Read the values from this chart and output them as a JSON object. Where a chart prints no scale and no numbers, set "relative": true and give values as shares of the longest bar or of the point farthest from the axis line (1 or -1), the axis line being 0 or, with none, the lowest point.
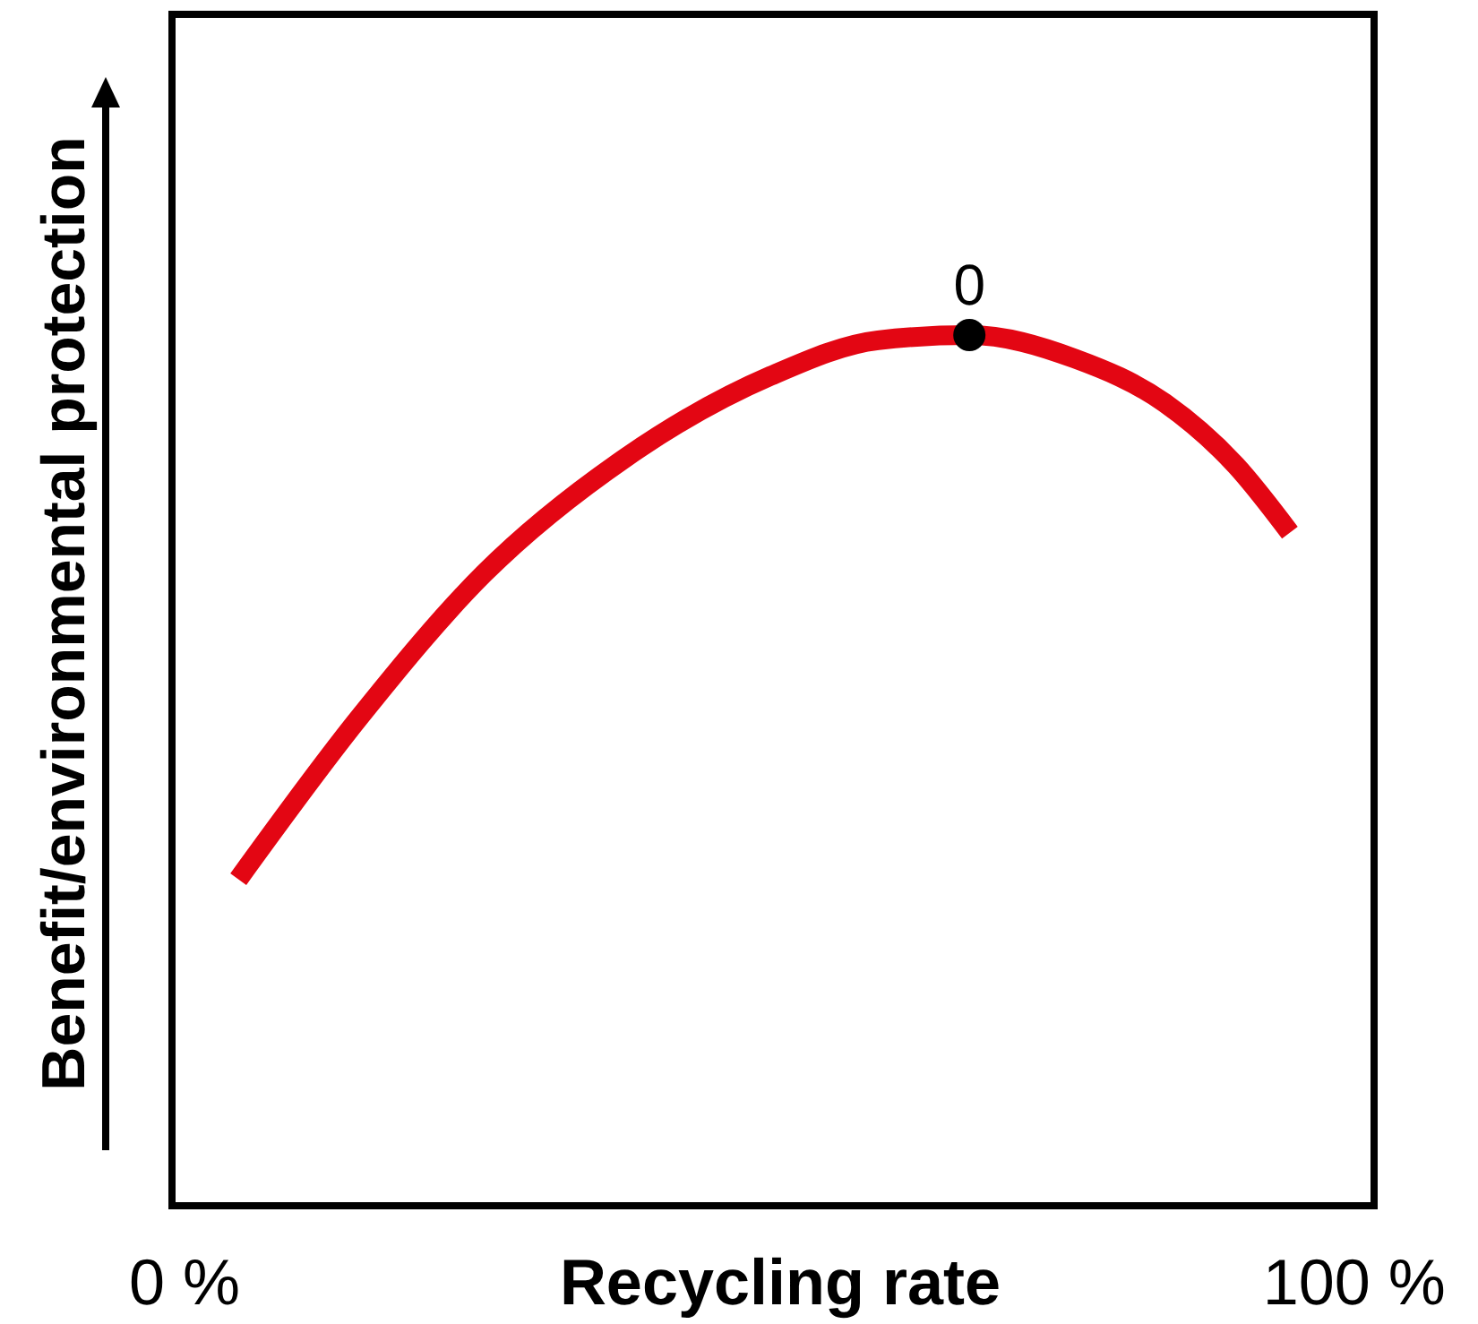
{
  "chart_data": {
    "type": "line",
    "relative": true,
    "xlabel": "Recycling rate",
    "ylabel": "Benefit/environmental protection",
    "xlim": [
      -1.07,
      101.7
    ],
    "xticks": [
      {
        "value": 0,
        "label": "0 %"
      },
      {
        "value": 100,
        "label": "100 %"
      }
    ],
    "x": [
      4.6,
      14.9,
      25.6,
      37.8,
      50.1,
      59.3,
      67.1,
      76.1,
      83.8,
      89.9,
      94.5
    ],
    "series": [
      {
        "color": "#e30613",
        "values": [
          0.375,
          0.56,
          0.726,
          0.86,
          0.953,
          0.994,
          1,
          0.973,
          0.922,
          0.85,
          0.773
        ]
      },
      {
        "type": "scatter",
        "marker": "circle",
        "color": "#000000",
        "x": [
          67.1
        ],
        "values": [
          1
        ]
      }
    ],
    "annotations": [
      {
        "text": "0",
        "x": 67.1,
        "y": 1
      }
    ],
    "marker": "none",
    "line_style": "solid",
    "grid": false
  }
}
